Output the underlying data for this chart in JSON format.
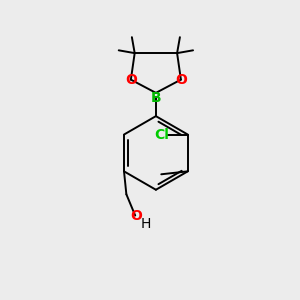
{
  "background_color": "#ececec",
  "bond_color": "#000000",
  "atom_colors": {
    "B": "#00bb00",
    "O": "#ff0000",
    "Cl": "#00cc00",
    "C": "#000000",
    "H": "#000000"
  },
  "font_size_atoms": 10,
  "line_width": 1.4,
  "figsize": [
    3.0,
    3.0
  ],
  "dpi": 100
}
